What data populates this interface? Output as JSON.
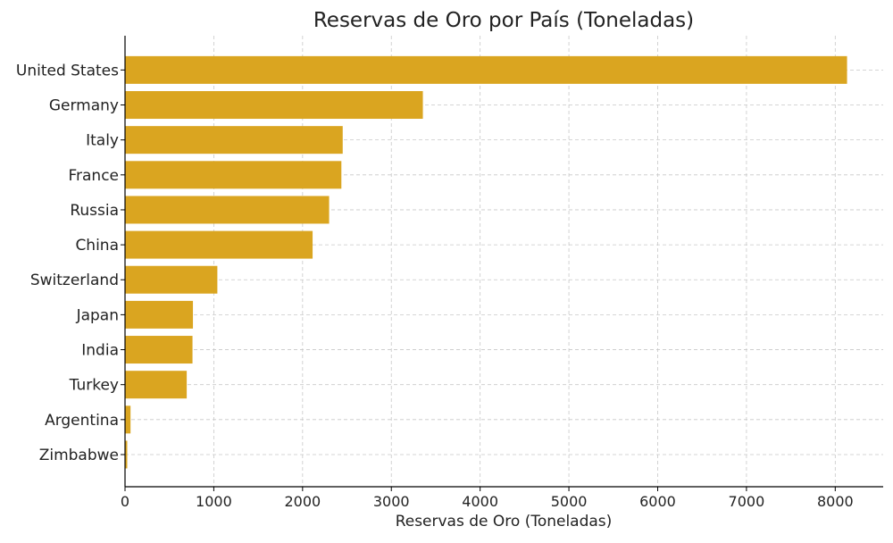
{
  "chart_data": {
    "type": "bar",
    "orientation": "horizontal",
    "title": "Reservas de Oro por País (Toneladas)",
    "xlabel": "Reservas de Oro (Toneladas)",
    "ylabel": "",
    "categories": [
      "United States",
      "Germany",
      "Italy",
      "France",
      "Russia",
      "China",
      "Switzerland",
      "Japan",
      "India",
      "Turkey",
      "Argentina",
      "Zimbabwe"
    ],
    "values": [
      8133,
      3355,
      2452,
      2437,
      2299,
      2113,
      1040,
      765,
      760,
      695,
      62,
      25
    ],
    "xlim": [
      0,
      8540
    ],
    "xticks": [
      0,
      1000,
      2000,
      3000,
      4000,
      5000,
      6000,
      7000,
      8000
    ],
    "grid": true,
    "bar_color": "#DAA520"
  }
}
